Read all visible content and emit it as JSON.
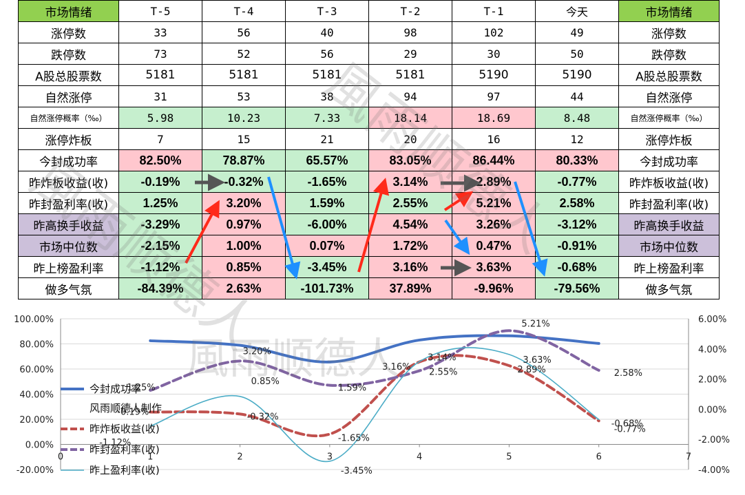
{
  "table": {
    "header": [
      "市场情绪",
      "T-5",
      "T-4",
      "T-3",
      "T-2",
      "T-1",
      "今天",
      "市场情绪"
    ],
    "rows": [
      {
        "label": "涨停数",
        "values": [
          "33",
          "56",
          "40",
          "98",
          "102",
          "49"
        ],
        "fmt": "mono",
        "colors": [
          "red",
          "red",
          "red",
          "red",
          "red",
          "red"
        ],
        "bg": [
          "",
          "",
          "",
          "",
          "",
          ""
        ]
      },
      {
        "label": "跌停数",
        "values": [
          "73",
          "52",
          "56",
          "29",
          "30",
          "50"
        ],
        "fmt": "mono",
        "colors": [
          "grn",
          "grn",
          "grn",
          "grn",
          "grn",
          "grn"
        ],
        "bg": [
          "",
          "",
          "",
          "",
          "",
          ""
        ]
      },
      {
        "label": "A股总股票数",
        "values": [
          "5181",
          "5181",
          "5181",
          "5181",
          "5190",
          "5190"
        ],
        "fmt": "plain",
        "colors": [
          "blk",
          "blk",
          "blk",
          "blk",
          "blk",
          "blk"
        ],
        "bg": [
          "",
          "",
          "",
          "",
          "",
          ""
        ]
      },
      {
        "label": "自然涨停",
        "values": [
          "31",
          "53",
          "38",
          "94",
          "97",
          "44"
        ],
        "fmt": "mono",
        "colors": [
          "red",
          "red",
          "red",
          "red",
          "red",
          "red"
        ],
        "bg": [
          "",
          "",
          "",
          "",
          "",
          ""
        ]
      },
      {
        "label": "自然涨停概率（‰）",
        "values": [
          "5.98",
          "10.23",
          "7.33",
          "18.14",
          "18.69",
          "8.48"
        ],
        "fmt": "mono",
        "small": true,
        "colors": [
          "grn",
          "grn",
          "grn",
          "red",
          "red",
          "grn"
        ],
        "bg": [
          "g",
          "g",
          "g",
          "p",
          "p",
          "g"
        ]
      },
      {
        "label": "涨停炸板",
        "values": [
          "7",
          "15",
          "21",
          "20",
          "16",
          "12"
        ],
        "fmt": "mono",
        "colors": [
          "grn",
          "grn",
          "grn",
          "grn",
          "grn",
          "grn"
        ],
        "bg": [
          "",
          "",
          "",
          "",
          "",
          ""
        ]
      },
      {
        "label": "今封成功率",
        "values": [
          "82.50%",
          "78.87%",
          "65.57%",
          "83.05%",
          "86.44%",
          "80.33%"
        ],
        "fmt": "pct",
        "colors": [
          "dr",
          "dg",
          "dg",
          "dr",
          "dr",
          "dr"
        ],
        "bg": [
          "p",
          "g",
          "g",
          "p",
          "p",
          "p"
        ]
      },
      {
        "label": "昨炸板收益(收)",
        "values": [
          "-0.19%",
          "-0.32%",
          "-1.65%",
          "3.14%",
          "2.89%",
          "-0.77%"
        ],
        "fmt": "pct",
        "colors": [
          "dg",
          "dg",
          "dg",
          "dr",
          "dr",
          "dg"
        ],
        "bg": [
          "g",
          "g",
          "g",
          "p",
          "p",
          "g"
        ]
      },
      {
        "label": "昨封盈利率(收)",
        "values": [
          "1.25%",
          "3.20%",
          "1.59%",
          "2.55%",
          "5.21%",
          "2.58%"
        ],
        "fmt": "pct",
        "colors": [
          "dg",
          "dr",
          "dg",
          "dg",
          "dr",
          "dg"
        ],
        "bg": [
          "g",
          "p",
          "g",
          "g",
          "p",
          "g"
        ]
      },
      {
        "label": "昨高换手收益",
        "values": [
          "-3.29%",
          "0.97%",
          "-6.00%",
          "4.54%",
          "3.26%",
          "-3.12%"
        ],
        "fmt": "pct",
        "purple": true,
        "colors": [
          "dg",
          "dr",
          "dg",
          "dr",
          "dr",
          "dg"
        ],
        "bg": [
          "g",
          "p",
          "g",
          "p",
          "p",
          "g"
        ]
      },
      {
        "label": "市场中位数",
        "values": [
          "-2.15%",
          "1.00%",
          "0.07%",
          "1.72%",
          "0.47%",
          "-0.91%"
        ],
        "fmt": "pct",
        "purple": true,
        "colors": [
          "dg",
          "dr",
          "dr",
          "dr",
          "dr",
          "dg"
        ],
        "bg": [
          "g",
          "p",
          "p",
          "p",
          "p",
          "g"
        ]
      },
      {
        "label": "昨上榜盈利率",
        "values": [
          "-1.12%",
          "0.85%",
          "-3.45%",
          "3.16%",
          "3.63%",
          "-0.68%"
        ],
        "fmt": "pct",
        "colors": [
          "dg",
          "dr",
          "dg",
          "dr",
          "dr",
          "dg"
        ],
        "bg": [
          "g",
          "p",
          "g",
          "p",
          "p",
          "g"
        ]
      },
      {
        "label": "做多气氛",
        "values": [
          "-84.39%",
          "2.63%",
          "-101.73%",
          "37.89%",
          "-9.96%",
          "-79.56%"
        ],
        "fmt": "pct",
        "colors": [
          "dg",
          "dr",
          "dg",
          "dr",
          "dr",
          "dg"
        ],
        "bg": [
          "g",
          "p",
          "g",
          "p",
          "p",
          "g"
        ]
      }
    ]
  },
  "watermark": "風雨顺德人",
  "colors": {
    "header_green": "#92d050",
    "good_bg": "#c6efce",
    "bad_bg": "#ffc7ce",
    "purple": "#ccc0da",
    "arrow_red": "#ff2a1a",
    "arrow_blue": "#1e90ff",
    "arrow_gray": "#555555"
  },
  "chart_data": {
    "type": "line",
    "x_ticks": [
      "0",
      "1",
      "2",
      "3",
      "4",
      "5",
      "6",
      "7"
    ],
    "xlim": [
      0,
      7
    ],
    "y_left": {
      "ticks": [
        "100.00%",
        "80.00%",
        "60.00%",
        "40.00%",
        "20.00%",
        "0.00%",
        "-20.00%"
      ],
      "ylim": [
        -20,
        100
      ]
    },
    "y_right": {
      "ticks": [
        "6.00%",
        "4.00%",
        "2.00%",
        "0.00%",
        "-2.00%",
        "-4.00%"
      ],
      "ylim": [
        -4,
        6
      ]
    },
    "series": [
      {
        "name": "今封成功率",
        "axis": "left",
        "color": "#4472c4",
        "dash": "",
        "width": 4,
        "x": [
          1,
          2,
          3,
          4,
          5,
          6
        ],
        "y": [
          82.5,
          78.87,
          65.57,
          83.05,
          86.44,
          80.33
        ],
        "labels": []
      },
      {
        "name": "风雨顺德人制作",
        "axis": "right",
        "color": "none",
        "dash": "",
        "width": 0,
        "x": [],
        "y": [],
        "labels": []
      },
      {
        "name": "昨炸板收益(收)",
        "axis": "right",
        "color": "#c0504d",
        "dash": "12,6",
        "width": 4,
        "x": [
          1,
          2,
          3,
          4,
          5,
          6
        ],
        "y": [
          -0.19,
          -0.32,
          -1.65,
          3.14,
          2.89,
          -0.77
        ],
        "labels": [
          "-0.19%",
          "-0.32%",
          "-1.65%",
          "3.14%",
          "2.89%",
          "-0.77%"
        ]
      },
      {
        "name": "昨封盈利率(收)",
        "axis": "right",
        "color": "#8064a2",
        "dash": "12,6",
        "width": 4,
        "x": [
          1,
          2,
          3,
          4,
          5,
          6
        ],
        "y": [
          1.25,
          3.2,
          1.59,
          2.55,
          5.21,
          2.58
        ],
        "labels": [
          "1.25%",
          "3.20%",
          "1.59%",
          "2.55%",
          "5.21%",
          "2.58%"
        ]
      },
      {
        "name": "昨上盈利率(收)",
        "axis": "right",
        "color": "#4bacc6",
        "dash": "",
        "width": 1.6,
        "x": [
          1,
          2,
          3,
          4,
          5,
          6
        ],
        "y": [
          -1.12,
          0.85,
          -3.45,
          3.16,
          3.63,
          -0.68
        ],
        "labels": [
          "-1.12%",
          "0.85%",
          "-3.45%",
          "3.16%",
          "3.63%",
          "-0.68%"
        ]
      }
    ]
  }
}
